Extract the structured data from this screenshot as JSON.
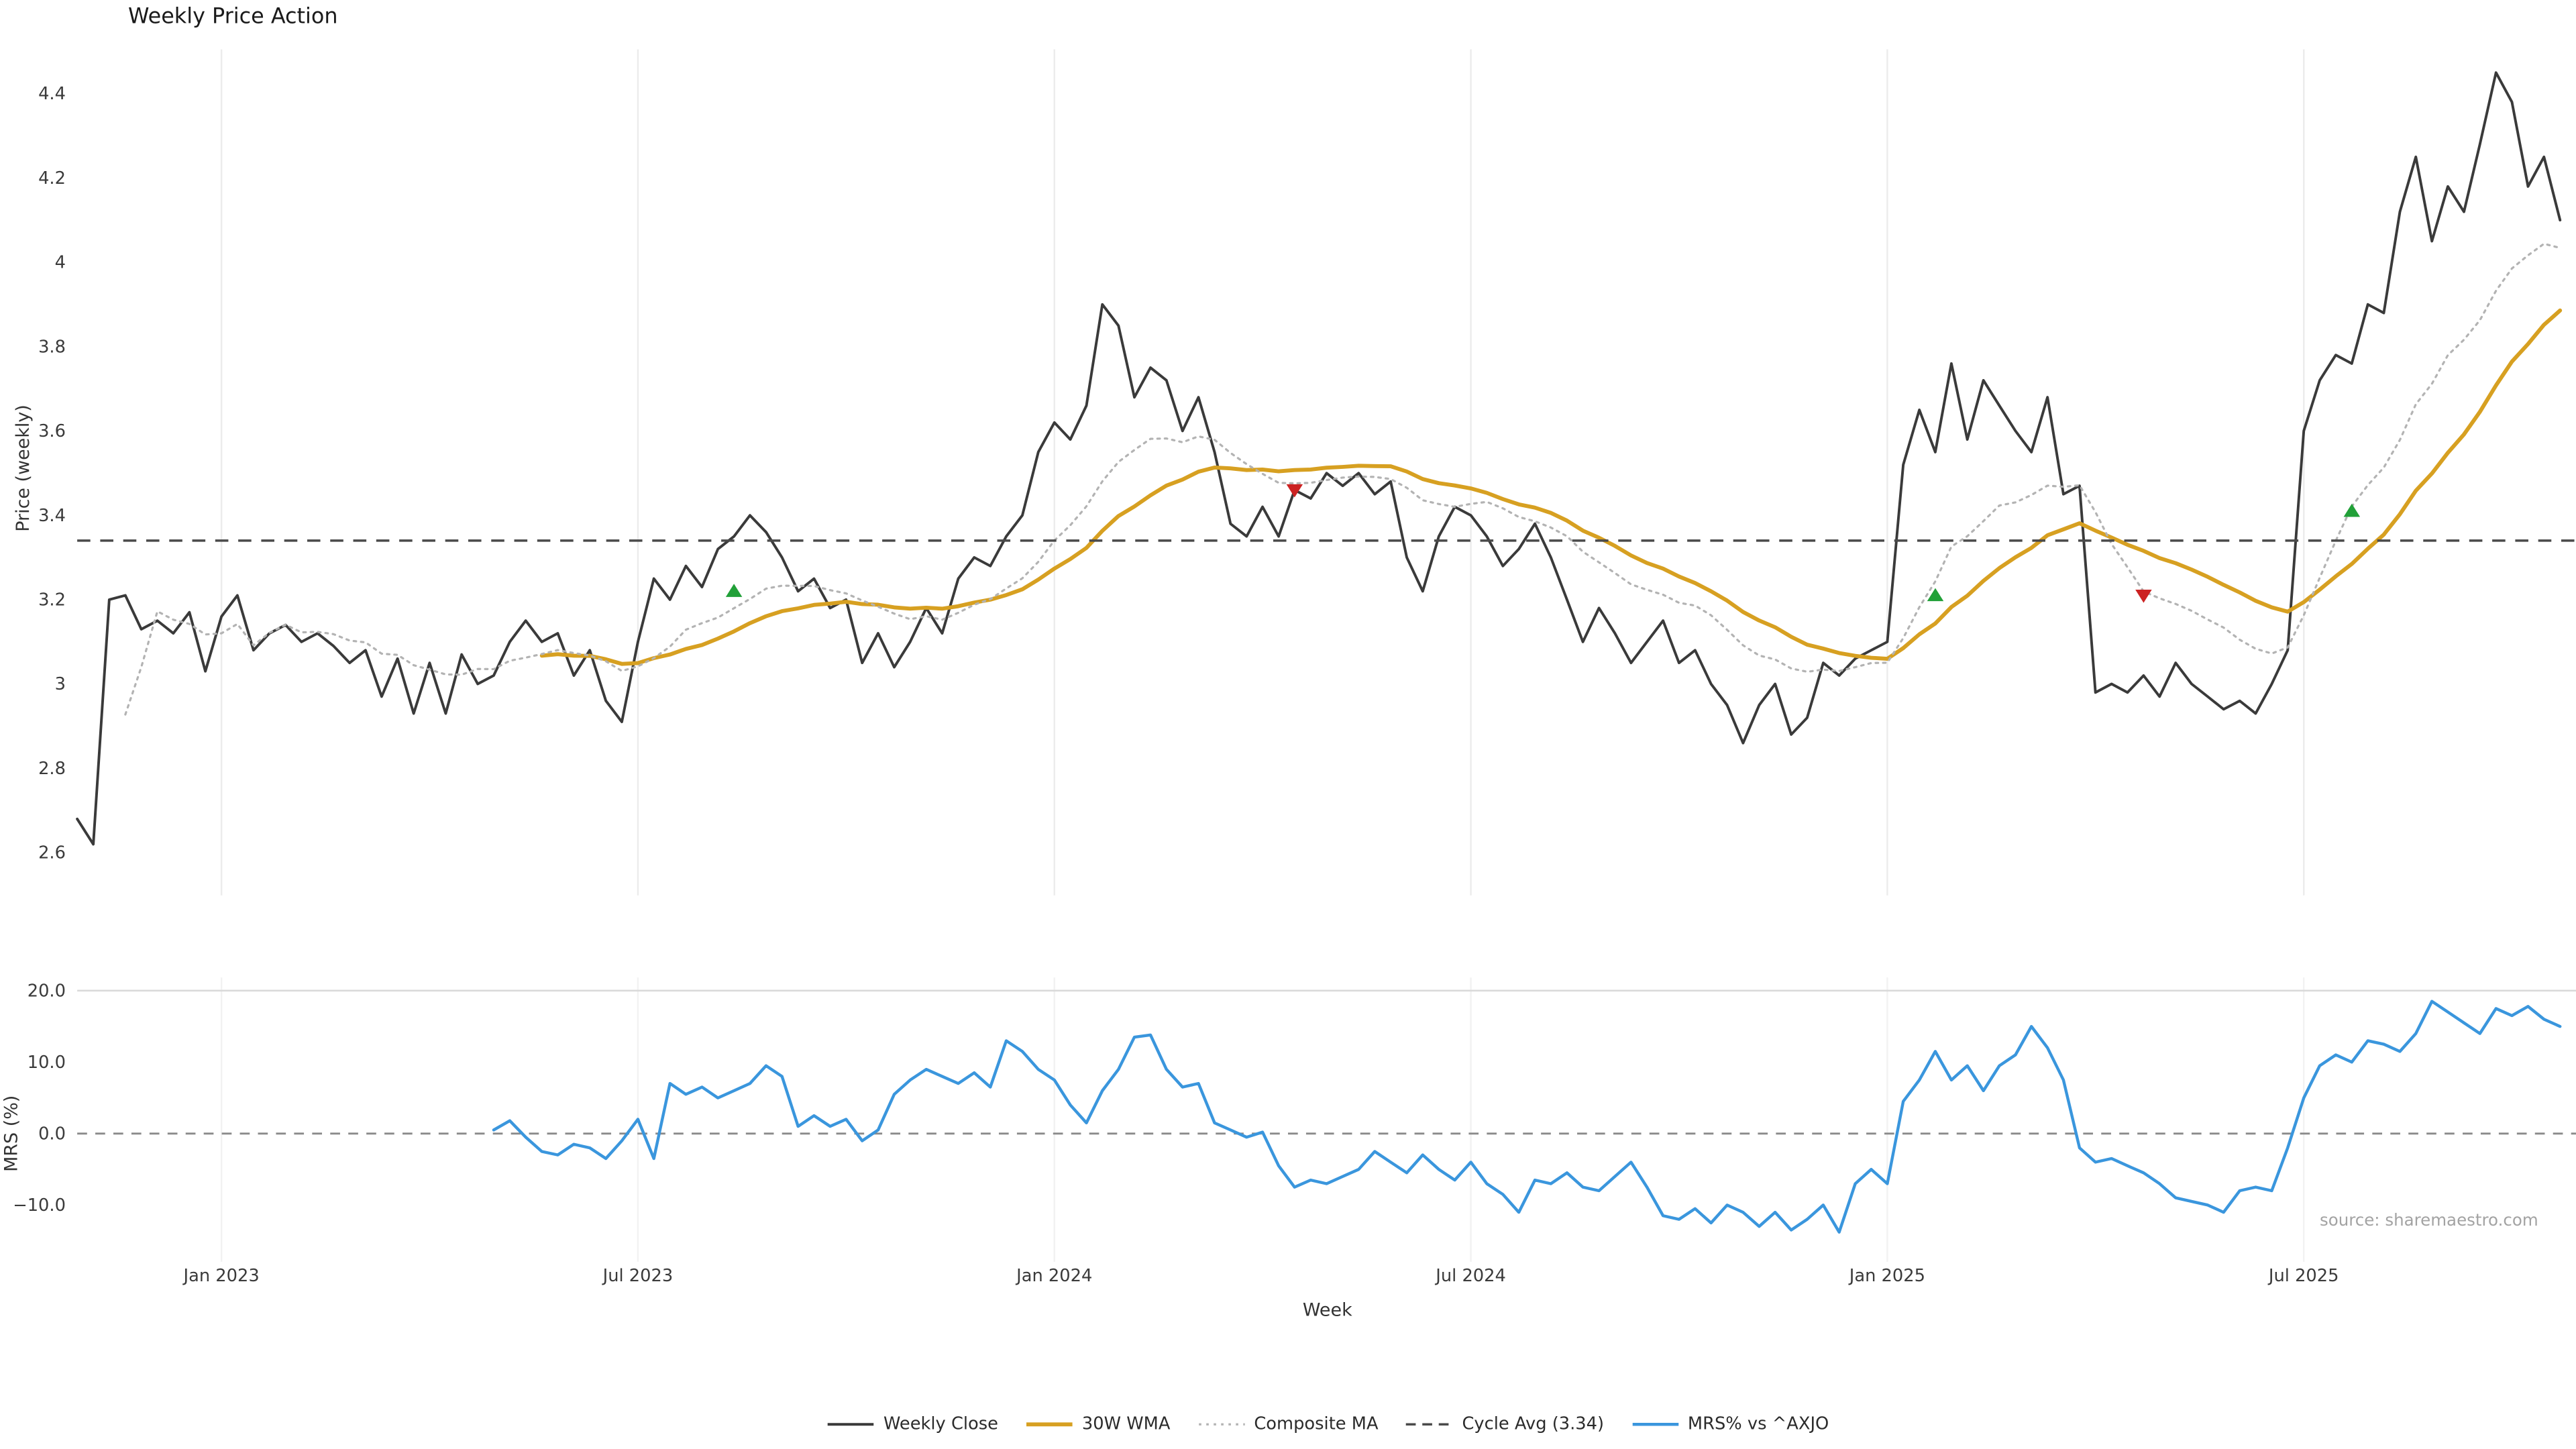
{
  "page": {
    "source": "source: sharemaestro.com"
  },
  "chart_data": {
    "type": "line",
    "title": "Weekly Price Action",
    "xlabel": "Week",
    "n_weeks": 156,
    "panels": [
      {
        "name": "price",
        "ylabel": "Price (weekly)",
        "ylim": [
          2.55,
          4.5
        ],
        "y_ticks": [
          {
            "value": 2.6,
            "label": "2.6"
          },
          {
            "value": 2.8,
            "label": "2.8"
          },
          {
            "value": 3.0,
            "label": "3"
          },
          {
            "value": 3.2,
            "label": "3.2"
          },
          {
            "value": 3.4,
            "label": "3.4"
          },
          {
            "value": 3.6,
            "label": "3.6"
          },
          {
            "value": 3.8,
            "label": "3.8"
          },
          {
            "value": 4.0,
            "label": "4"
          },
          {
            "value": 4.2,
            "label": "4.2"
          },
          {
            "value": 4.4,
            "label": "4.4"
          }
        ]
      },
      {
        "name": "mrs",
        "ylabel": "MRS (%)",
        "ylim": [
          -15,
          21
        ],
        "y_ticks": [
          {
            "value": 20,
            "label": "20.0"
          },
          {
            "value": 10,
            "label": "10.0"
          },
          {
            "value": 0,
            "label": "0.0"
          },
          {
            "value": -10,
            "label": "−10.0"
          }
        ]
      }
    ],
    "x_ticks": [
      {
        "week": 9,
        "label": "Jan 2023"
      },
      {
        "week": 35,
        "label": "Jul 2023"
      },
      {
        "week": 61,
        "label": "Jan 2024"
      },
      {
        "week": 87,
        "label": "Jul 2024"
      },
      {
        "week": 113,
        "label": "Jan 2025"
      },
      {
        "week": 139,
        "label": "Jul 2025"
      }
    ],
    "series": [
      {
        "name": "Weekly Close",
        "panel": "price",
        "color": "#3a3a3a",
        "style": "solid",
        "width": 1.6,
        "values": [
          2.68,
          2.62,
          3.2,
          3.21,
          3.13,
          3.15,
          3.12,
          3.17,
          3.03,
          3.16,
          3.21,
          3.08,
          3.12,
          3.14,
          3.1,
          3.12,
          3.09,
          3.05,
          3.08,
          2.97,
          3.06,
          2.93,
          3.05,
          2.93,
          3.07,
          3.0,
          3.02,
          3.1,
          3.15,
          3.1,
          3.12,
          3.02,
          3.08,
          2.96,
          2.91,
          3.1,
          3.25,
          3.2,
          3.28,
          3.23,
          3.32,
          3.35,
          3.4,
          3.36,
          3.3,
          3.22,
          3.25,
          3.18,
          3.2,
          3.05,
          3.12,
          3.04,
          3.1,
          3.18,
          3.12,
          3.25,
          3.3,
          3.28,
          3.35,
          3.4,
          3.55,
          3.62,
          3.58,
          3.66,
          3.9,
          3.85,
          3.68,
          3.75,
          3.72,
          3.6,
          3.68,
          3.55,
          3.38,
          3.35,
          3.42,
          3.35,
          3.46,
          3.44,
          3.5,
          3.47,
          3.5,
          3.45,
          3.48,
          3.3,
          3.22,
          3.35,
          3.42,
          3.4,
          3.35,
          3.28,
          3.32,
          3.38,
          3.3,
          3.2,
          3.1,
          3.18,
          3.12,
          3.05,
          3.1,
          3.15,
          3.05,
          3.08,
          3.0,
          2.95,
          2.86,
          2.95,
          3.0,
          2.88,
          2.92,
          3.05,
          3.02,
          3.06,
          3.08,
          3.1,
          3.52,
          3.65,
          3.55,
          3.76,
          3.58,
          3.72,
          3.66,
          3.6,
          3.55,
          3.68,
          3.45,
          3.47,
          2.98,
          3.0,
          2.98,
          3.02,
          2.97,
          3.05,
          3.0,
          2.97,
          2.94,
          2.96,
          2.93,
          3.0,
          3.08,
          3.6,
          3.72,
          3.78,
          3.76,
          3.9,
          3.88,
          4.12,
          4.25,
          4.05,
          4.18,
          4.12,
          4.28,
          4.45,
          4.38,
          4.18,
          4.25,
          4.1
        ]
      },
      {
        "name": "30W WMA",
        "panel": "price",
        "color": "#d7a021",
        "style": "solid",
        "width": 2.4,
        "derived": {
          "type": "wma",
          "source": "Weekly Close",
          "window": 30
        }
      },
      {
        "name": "Composite MA",
        "panel": "price",
        "color": "#b3b3b3",
        "style": "dotted",
        "width": 1.3,
        "derived": {
          "type": "sma_blend",
          "source": "Weekly Close",
          "windows": [
            4,
            12,
            26
          ]
        }
      },
      {
        "name": "Cycle Avg (3.34)",
        "panel": "price",
        "color": "#4a4a4a",
        "style": "dashed",
        "width": 1.4,
        "constant": 3.34
      },
      {
        "name": "MRS% vs ^AXJO",
        "panel": "mrs",
        "color": "#3a96dd",
        "style": "solid",
        "width": 1.8,
        "start_week": 26,
        "values": [
          0.5,
          1.8,
          -0.5,
          -2.5,
          -3.0,
          -1.5,
          -2.0,
          -3.5,
          -1.0,
          2.0,
          -3.5,
          7.0,
          5.5,
          6.5,
          5.0,
          6.0,
          7.0,
          9.5,
          8.0,
          1.0,
          2.5,
          1.0,
          2.0,
          -1.0,
          0.5,
          5.5,
          7.5,
          9.0,
          8.0,
          7.0,
          8.5,
          6.5,
          13.0,
          11.5,
          9.0,
          7.5,
          4.0,
          1.5,
          6.0,
          9.0,
          13.5,
          13.8,
          9.0,
          6.5,
          7.0,
          1.5,
          0.5,
          -0.5,
          0.2,
          -4.5,
          -7.5,
          -6.5,
          -7.0,
          -6.0,
          -5.0,
          -2.5,
          -4.0,
          -5.5,
          -3.0,
          -5.0,
          -6.5,
          -4.0,
          -7.0,
          -8.5,
          -11.0,
          -6.5,
          -7.0,
          -5.5,
          -7.5,
          -8.0,
          -6.0,
          -4.0,
          -7.5,
          -11.5,
          -12.0,
          -10.5,
          -12.5,
          -10.0,
          -11.0,
          -13.0,
          -11.0,
          -13.5,
          -12.0,
          -10.0,
          -13.8,
          -7.0,
          -5.0,
          -7.0,
          4.5,
          7.5,
          11.5,
          7.5,
          9.5,
          6.0,
          9.5,
          11.0,
          15.0,
          12.0,
          7.5,
          -2.0,
          -4.0,
          -3.5,
          -4.5,
          -5.5,
          -7.0,
          -9.0,
          -9.5,
          -10.0,
          -11.0,
          -8.0,
          -7.5,
          -8.0,
          -2.0,
          5.0,
          9.5,
          11.0,
          10.0,
          13.0,
          12.5,
          11.5,
          14.0,
          18.5,
          17.0,
          15.5,
          14.0,
          17.5,
          16.5,
          17.8,
          16.0,
          15.0
        ]
      }
    ],
    "markers": {
      "buy": {
        "shape": "triangle-up",
        "color": "#21a038",
        "points": [
          {
            "week": 41,
            "price": 3.22
          },
          {
            "week": 116,
            "price": 3.21
          },
          {
            "week": 142,
            "price": 3.41
          }
        ]
      },
      "sell": {
        "shape": "triangle-down",
        "color": "#cc2222",
        "points": [
          {
            "week": 76,
            "price": 3.46
          },
          {
            "week": 129,
            "price": 3.21
          }
        ]
      }
    },
    "zero_line": {
      "panel": "mrs",
      "value": 0
    }
  },
  "legend": {
    "items": [
      {
        "label": "Weekly Close",
        "color": "#3a3a3a",
        "style": "solid",
        "width": 1.6
      },
      {
        "label": "30W WMA",
        "color": "#d7a021",
        "style": "solid",
        "width": 2.4
      },
      {
        "label": "Composite MA",
        "color": "#b3b3b3",
        "style": "dotted",
        "width": 1.3
      },
      {
        "label": "Cycle Avg (3.34)",
        "color": "#4a4a4a",
        "style": "dashed",
        "width": 1.4
      },
      {
        "label": "MRS% vs ^AXJO",
        "color": "#3a96dd",
        "style": "solid",
        "width": 1.8
      }
    ]
  }
}
